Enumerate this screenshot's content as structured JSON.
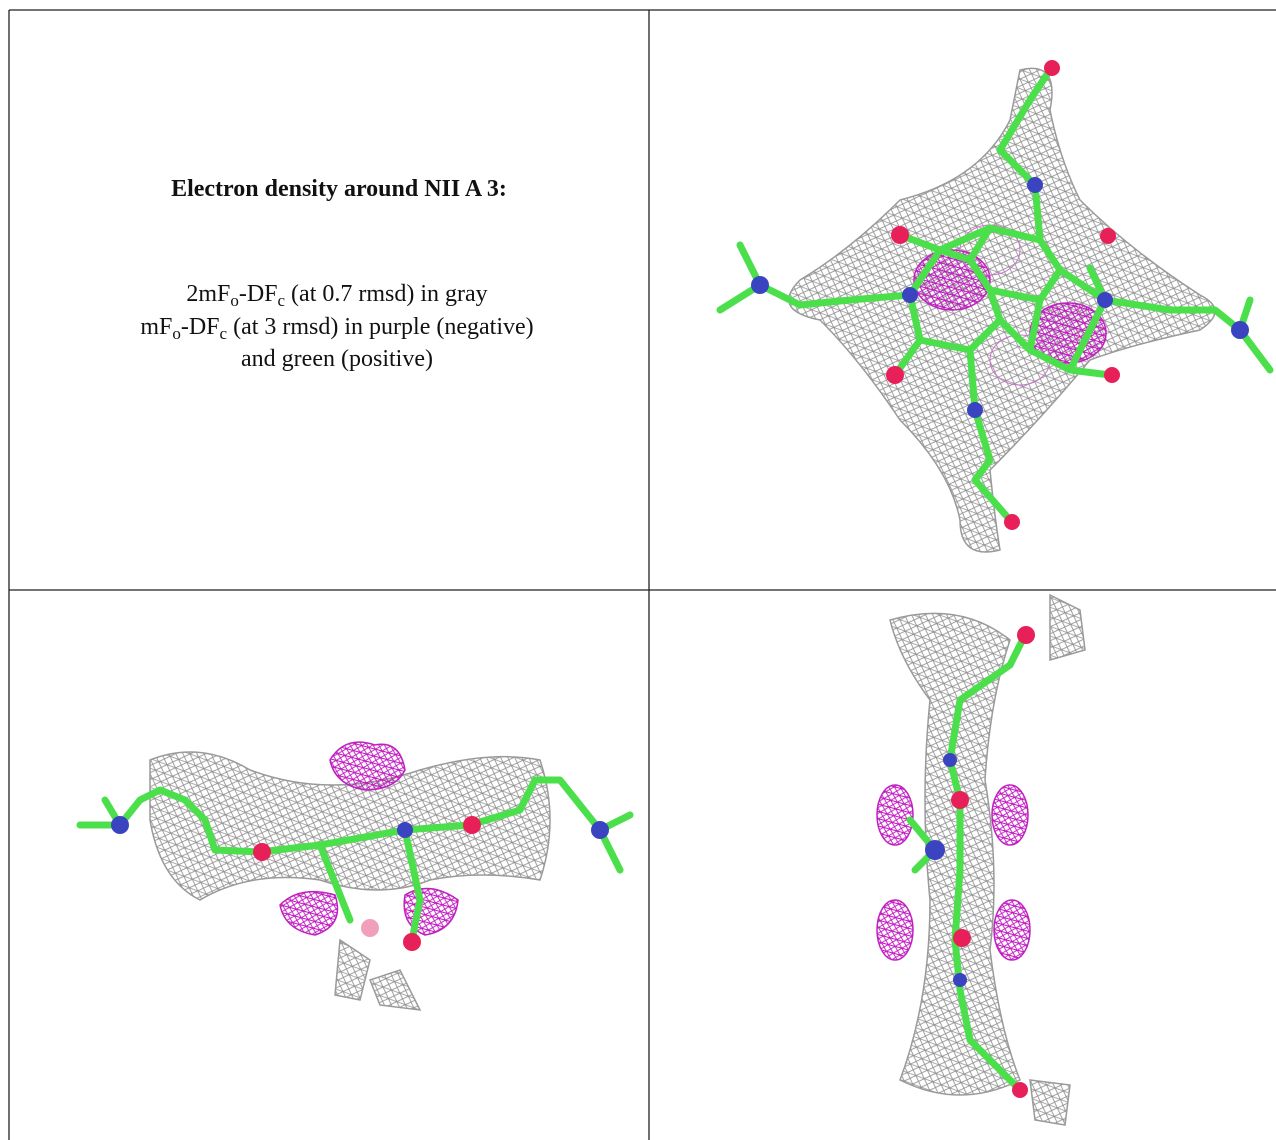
{
  "caption": {
    "title": "Electron density around NII A 3:",
    "lines": [
      [
        "2mF",
        "o",
        "-DF",
        "c",
        " (at 0.7 rmsd) in gray"
      ],
      [
        "mF",
        "o",
        "-DF",
        "c",
        " (at 3 rmsd) in purple (negative)"
      ],
      [
        "and green (positive)"
      ]
    ]
  }
}
